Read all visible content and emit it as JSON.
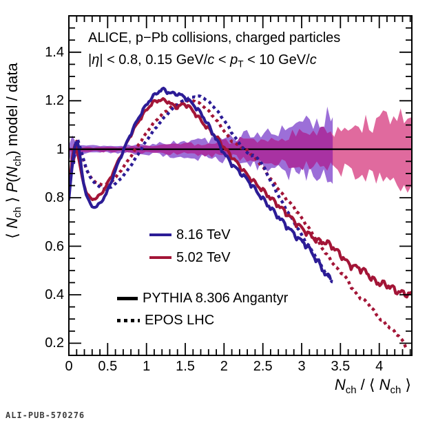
{
  "header": {
    "line1": "ALICE, p−Pb collisions, charged particles",
    "line2_segments": [
      {
        "t": "|"
      },
      {
        "t": "η",
        "s": "i"
      },
      {
        "t": "| < 0.8, 0.15 GeV/"
      },
      {
        "t": "c",
        "s": "i"
      },
      {
        "t": " < "
      },
      {
        "t": "p",
        "s": "i"
      },
      {
        "t": "T",
        "s": "sub"
      },
      {
        "t": " < 10 GeV/"
      },
      {
        "t": "c",
        "s": "i"
      }
    ]
  },
  "axes": {
    "y_title_segments": [
      {
        "t": "⟨ "
      },
      {
        "t": "N",
        "s": "i"
      },
      {
        "t": "ch",
        "s": "sub"
      },
      {
        "t": " ⟩ "
      },
      {
        "t": "P",
        "s": "i"
      },
      {
        "t": "("
      },
      {
        "t": "N",
        "s": "i"
      },
      {
        "t": "ch",
        "s": "sub"
      },
      {
        "t": ") model / data"
      }
    ],
    "x_title_segments": [
      {
        "t": "N",
        "s": "i"
      },
      {
        "t": "ch",
        "s": "sub"
      },
      {
        "t": " / ⟨ "
      },
      {
        "t": "N",
        "s": "i"
      },
      {
        "t": "ch",
        "s": "sub"
      },
      {
        "t": " ⟩"
      }
    ]
  },
  "footer": {
    "watermark": "ALI-PUB-570276"
  },
  "chart_data": {
    "type": "line",
    "title": "ALICE, p−Pb collisions, charged particles",
    "subtitle": "|η| < 0.8, 0.15 GeV/c < pT < 10 GeV/c",
    "xlabel": "Nch / ⟨ Nch ⟩",
    "ylabel": "⟨ Nch ⟩ P(Nch) model / data",
    "xlim": [
      0,
      4.42
    ],
    "ylim": [
      0.15,
      1.55
    ],
    "grid": false,
    "reference_line_y": 1,
    "x_axis": {
      "tick_values": [
        0,
        0.5,
        1,
        1.5,
        2,
        2.5,
        3,
        3.5,
        4
      ],
      "tick_labels": [
        "0",
        "0.5",
        "1",
        "1.5",
        "2",
        "2.5",
        "3",
        "3.5",
        "4"
      ],
      "minor_step": 0.1
    },
    "y_axis": {
      "tick_values": [
        0.2,
        0.4,
        0.6,
        0.8,
        1,
        1.2,
        1.4
      ],
      "tick_labels": [
        "0.2",
        "0.4",
        "0.6",
        "0.8",
        "1",
        "1.2",
        "1.4"
      ],
      "minor_step": 0.05
    },
    "series": [
      {
        "name": "PYTHIA 8.306 Angantyr, 8.16 TeV",
        "style": "solid",
        "color": "#2c1c96",
        "points": [
          [
            0.0,
            0.79
          ],
          [
            0.04,
            0.92
          ],
          [
            0.09,
            1.03
          ],
          [
            0.13,
            1.0
          ],
          [
            0.19,
            0.86
          ],
          [
            0.28,
            0.772
          ],
          [
            0.38,
            0.77
          ],
          [
            0.5,
            0.83
          ],
          [
            0.62,
            0.93
          ],
          [
            0.75,
            1.03
          ],
          [
            0.9,
            1.13
          ],
          [
            1.05,
            1.205
          ],
          [
            1.2,
            1.245
          ],
          [
            1.3,
            1.232
          ],
          [
            1.42,
            1.226
          ],
          [
            1.55,
            1.2
          ],
          [
            1.7,
            1.148
          ],
          [
            1.85,
            1.07
          ],
          [
            1.97,
            1.0
          ],
          [
            2.1,
            0.94
          ],
          [
            2.31,
            0.87
          ],
          [
            2.5,
            0.795
          ],
          [
            2.76,
            0.7
          ],
          [
            2.95,
            0.635
          ],
          [
            3.07,
            0.6
          ],
          [
            3.2,
            0.54
          ],
          [
            3.3,
            0.49
          ],
          [
            3.37,
            0.465
          ]
        ]
      },
      {
        "name": "PYTHIA 8.306 Angantyr, 5.02 TeV",
        "style": "solid",
        "color": "#a31537",
        "points": [
          [
            0.0,
            0.815
          ],
          [
            0.04,
            0.95
          ],
          [
            0.08,
            1.02
          ],
          [
            0.12,
            0.97
          ],
          [
            0.19,
            0.86
          ],
          [
            0.27,
            0.8
          ],
          [
            0.38,
            0.805
          ],
          [
            0.5,
            0.86
          ],
          [
            0.65,
            0.96
          ],
          [
            0.8,
            1.06
          ],
          [
            0.95,
            1.14
          ],
          [
            1.1,
            1.195
          ],
          [
            1.25,
            1.2
          ],
          [
            1.38,
            1.175
          ],
          [
            1.5,
            1.185
          ],
          [
            1.62,
            1.15
          ],
          [
            1.75,
            1.1
          ],
          [
            1.9,
            1.05
          ],
          [
            2.02,
            1.0
          ],
          [
            2.15,
            0.95
          ],
          [
            2.31,
            0.89
          ],
          [
            2.5,
            0.83
          ],
          [
            2.76,
            0.75
          ],
          [
            3.0,
            0.675
          ],
          [
            3.2,
            0.625
          ],
          [
            3.35,
            0.61
          ],
          [
            3.5,
            0.565
          ],
          [
            3.62,
            0.525
          ],
          [
            3.8,
            0.5
          ],
          [
            3.95,
            0.455
          ],
          [
            4.1,
            0.44
          ],
          [
            4.25,
            0.412
          ],
          [
            4.42,
            0.4
          ]
        ]
      },
      {
        "name": "EPOS LHC, 8.16 TeV",
        "style": "dotted",
        "color": "#2c1c96",
        "points": [
          [
            0.06,
            0.94
          ],
          [
            0.1,
            1.04
          ],
          [
            0.15,
            1.0
          ],
          [
            0.25,
            0.9
          ],
          [
            0.35,
            0.856
          ],
          [
            0.45,
            0.836
          ],
          [
            0.55,
            0.846
          ],
          [
            0.7,
            0.89
          ],
          [
            0.85,
            0.958
          ],
          [
            1.0,
            1.035
          ],
          [
            1.15,
            1.1
          ],
          [
            1.3,
            1.155
          ],
          [
            1.45,
            1.195
          ],
          [
            1.6,
            1.215
          ],
          [
            1.72,
            1.214
          ],
          [
            1.85,
            1.18
          ],
          [
            2.0,
            1.12
          ],
          [
            2.15,
            1.045
          ],
          [
            2.3,
            0.985
          ],
          [
            2.45,
            0.958
          ],
          [
            2.6,
            0.87
          ],
          [
            2.75,
            0.78
          ],
          [
            2.9,
            0.7
          ],
          [
            3.05,
            0.62
          ],
          [
            3.2,
            0.55
          ],
          [
            3.33,
            0.48
          ],
          [
            3.4,
            0.455
          ]
        ]
      },
      {
        "name": "EPOS LHC, 5.02 TeV",
        "style": "dotted",
        "color": "#a31537",
        "points": [
          [
            0.06,
            0.955
          ],
          [
            0.1,
            1.035
          ],
          [
            0.16,
            0.985
          ],
          [
            0.26,
            0.895
          ],
          [
            0.4,
            0.856
          ],
          [
            0.55,
            0.868
          ],
          [
            0.7,
            0.925
          ],
          [
            0.9,
            1.02
          ],
          [
            1.1,
            1.11
          ],
          [
            1.3,
            1.17
          ],
          [
            1.45,
            1.193
          ],
          [
            1.6,
            1.2
          ],
          [
            1.75,
            1.172
          ],
          [
            1.9,
            1.12
          ],
          [
            2.1,
            1.035
          ],
          [
            2.3,
            0.995
          ],
          [
            2.45,
            0.945
          ],
          [
            2.6,
            0.88
          ],
          [
            2.75,
            0.815
          ],
          [
            2.9,
            0.76
          ],
          [
            3.08,
            0.68
          ],
          [
            3.25,
            0.6
          ],
          [
            3.45,
            0.51
          ],
          [
            3.55,
            0.48
          ],
          [
            3.7,
            0.405
          ],
          [
            3.85,
            0.365
          ],
          [
            4.0,
            0.305
          ],
          [
            4.15,
            0.26
          ],
          [
            4.25,
            0.23
          ],
          [
            4.35,
            0.185
          ]
        ]
      }
    ],
    "uncertainty_bands": [
      {
        "name": "8.16 TeV data uncertainty",
        "color": "#9c6fd8",
        "x_end": 3.4,
        "half_width_points": [
          [
            0.0,
            0.012
          ],
          [
            0.03,
            0.08
          ],
          [
            0.09,
            0.022
          ],
          [
            0.3,
            0.012
          ],
          [
            0.6,
            0.013
          ],
          [
            1.0,
            0.018
          ],
          [
            1.5,
            0.028
          ],
          [
            2.0,
            0.043
          ],
          [
            2.5,
            0.066
          ],
          [
            2.9,
            0.092
          ],
          [
            3.2,
            0.112
          ],
          [
            3.4,
            0.128
          ]
        ]
      },
      {
        "name": "5.02 TeV data uncertainty",
        "color": "#e06a9e",
        "overlap_color": "#a832a2",
        "x_end": 4.42,
        "half_width_points": [
          [
            0.0,
            0.007
          ],
          [
            0.5,
            0.009
          ],
          [
            1.0,
            0.013
          ],
          [
            1.5,
            0.019
          ],
          [
            2.0,
            0.029
          ],
          [
            2.5,
            0.044
          ],
          [
            3.0,
            0.06
          ],
          [
            3.4,
            0.074
          ],
          [
            3.8,
            0.097
          ],
          [
            4.1,
            0.112
          ],
          [
            4.42,
            0.127
          ]
        ]
      }
    ],
    "legend": {
      "entries": [
        {
          "label": "8.16 TeV",
          "color": "#2c1c96",
          "style": "solid"
        },
        {
          "label": "5.02 TeV",
          "color": "#a31537",
          "style": "solid"
        },
        {
          "label": "PYTHIA 8.306 Angantyr",
          "color": "#000000",
          "style": "solid"
        },
        {
          "label": "EPOS LHC",
          "color": "#000000",
          "style": "dotted"
        }
      ]
    }
  }
}
